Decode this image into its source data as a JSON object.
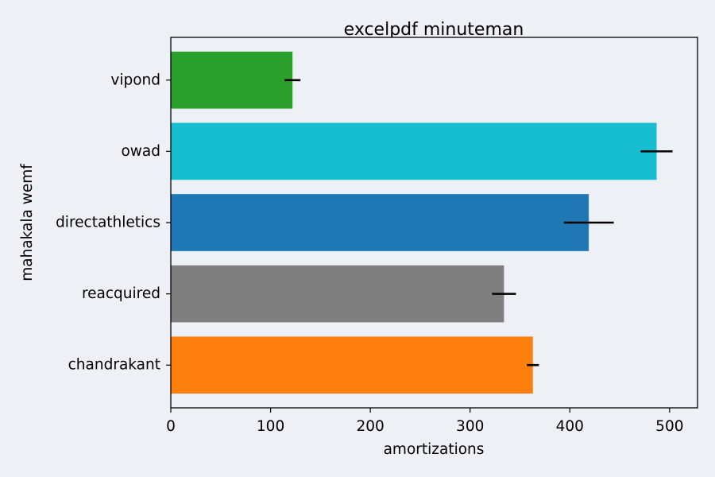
{
  "chart_data": {
    "type": "bar",
    "orientation": "horizontal",
    "title": "excelpdf minuteman",
    "xlabel": "amortizations",
    "ylabel": "mahakala wemf",
    "xlim": [
      0,
      528
    ],
    "xticks": [
      0,
      100,
      200,
      300,
      400,
      500
    ],
    "grid": false,
    "categories": [
      "chandrakant",
      "reacquired",
      "directathletics",
      "owad",
      "vipond"
    ],
    "values": [
      363,
      334,
      419,
      487,
      122
    ],
    "errors": [
      6,
      12,
      25,
      16,
      8
    ],
    "colors": [
      "#ff7f0e",
      "#7f7f7f",
      "#1f77b4",
      "#17becf",
      "#2ca02c"
    ]
  }
}
